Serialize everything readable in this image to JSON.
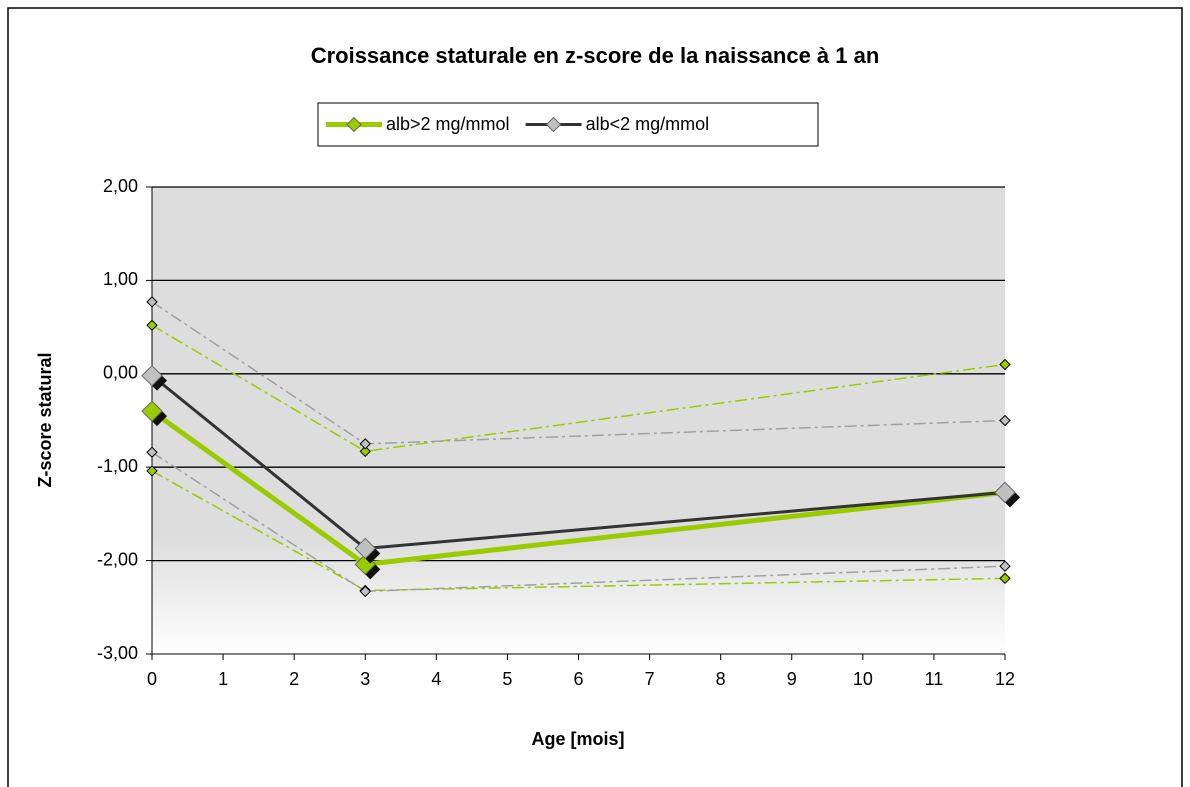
{
  "chart_data": {
    "type": "line",
    "title": "Croissance staturale en z-score de la naissance à 1 an",
    "xlabel": "Age  [mois]",
    "ylabel": "Z-score statural",
    "x": [
      0,
      3,
      12
    ],
    "series": [
      {
        "color": "#99cc00",
        "marker_color": "#99cc00",
        "line_style": "dashdot",
        "values": [
          0.52,
          -0.83,
          0.1
        ]
      },
      {
        "color": "#99cc00",
        "marker_color": "#99cc00",
        "line_style": "dashdot",
        "values": [
          -1.04,
          -2.32,
          -2.19
        ]
      },
      {
        "color": "#a0a0a0",
        "marker_color": "#c0c0c0",
        "line_style": "dashdot",
        "values": [
          0.77,
          -0.75,
          -0.5
        ]
      },
      {
        "color": "#a0a0a0",
        "marker_color": "#c0c0c0",
        "line_style": "dashdot",
        "values": [
          -0.84,
          -2.33,
          -2.06
        ]
      },
      {
        "name": "alb>2 mg/mmol",
        "color": "#99cc00",
        "marker_color": "#99cc00",
        "line_style": "solid",
        "values": [
          -0.4,
          -2.04,
          -1.27
        ]
      },
      {
        "name": "alb<2 mg/mmol",
        "color": "#333333",
        "marker_color": "#c0c0c0",
        "line_style": "solid",
        "values": [
          -0.02,
          -1.87,
          -1.27
        ]
      }
    ],
    "xlim": [
      0,
      12
    ],
    "xticks": [
      0,
      1,
      2,
      3,
      4,
      5,
      6,
      7,
      8,
      9,
      10,
      11,
      12
    ],
    "ylim": [
      -3,
      2
    ],
    "yticks": [
      {
        "value": -3,
        "label": "-3,00"
      },
      {
        "value": -2,
        "label": "-2,00"
      },
      {
        "value": -1,
        "label": "-1,00"
      },
      {
        "value": 0,
        "label": "0,00"
      },
      {
        "value": 1,
        "label": "1,00"
      },
      {
        "value": 2,
        "label": "2,00"
      }
    ],
    "grid": true,
    "legend": "top"
  }
}
